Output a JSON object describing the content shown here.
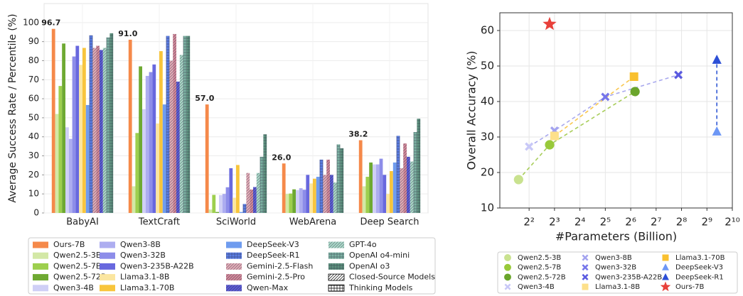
{
  "chart_data": [
    {
      "type": "bar",
      "ylabel": "Average Success Rate / Percentile (%)",
      "categories": [
        "BabyAI",
        "TextCraft",
        "SciWorld",
        "WebArena",
        "Deep Search"
      ],
      "ylim": [
        0,
        110
      ],
      "yticks": [
        0,
        10,
        20,
        30,
        40,
        50,
        60,
        70,
        80,
        90,
        100
      ],
      "grid": true,
      "series": [
        {
          "name": "Ours-7B",
          "color": "#f5894a",
          "values": [
            96.7,
            91.0,
            57.0,
            26.0,
            38.2
          ],
          "value_labels": [
            "96.7",
            "91.0",
            "57.0",
            "26.0",
            "38.2"
          ]
        },
        {
          "name": "Qwen2.5-3B",
          "color": "#d3e8a6",
          "values": [
            52,
            14,
            1.8,
            10,
            14
          ]
        },
        {
          "name": "Qwen2.5-7B",
          "color": "#9dcf4e",
          "values": [
            66.7,
            42,
            9.5,
            10.2,
            19
          ]
        },
        {
          "name": "Qwen2.5-72B",
          "color": "#6ea932",
          "values": [
            89,
            77,
            0.5,
            12.4,
            26.5
          ]
        },
        {
          "name": "Qwen3-4B",
          "color": "#cfcff6",
          "values": [
            45,
            54.5,
            9.4,
            12,
            25.5
          ]
        },
        {
          "name": "Qwen3-8B",
          "color": "#adadf0",
          "values": [
            38.9,
            72,
            10,
            13,
            25.5
          ]
        },
        {
          "name": "Qwen3-32B",
          "color": "#8d8de9",
          "values": [
            82.2,
            74,
            13.5,
            12.2,
            28.5
          ]
        },
        {
          "name": "Qwen3-235B-A22B",
          "color": "#6868de",
          "values": [
            87.8,
            78,
            23.5,
            20,
            20
          ]
        },
        {
          "name": "Llama3.1-8B",
          "color": "#fbe6a0",
          "values": [
            77.8,
            47,
            8,
            15.5,
            10
          ]
        },
        {
          "name": "Llama3.1-70B",
          "color": "#f8c53c",
          "values": [
            86.7,
            85,
            25.2,
            18,
            22
          ]
        },
        {
          "name": "DeepSeek-V3",
          "color": "#6f9cef",
          "values": [
            56.7,
            57,
            0.5,
            19,
            26.5
          ]
        },
        {
          "name": "DeepSeek-R1",
          "color": "#5c7fe6",
          "hatch": "+++",
          "values": [
            93.3,
            93,
            4.7,
            28,
            40.5
          ]
        },
        {
          "name": "Gemini-2.5-Flash",
          "color": "#e4adb8",
          "hatch": "///",
          "values": [
            86.7,
            80,
            21,
            20,
            23.5
          ]
        },
        {
          "name": "Gemini-2.5-Pro",
          "color": "#d48a9b",
          "hatch": "///",
          "values": [
            87.8,
            94,
            12.3,
            28,
            36.5
          ]
        },
        {
          "name": "Qwen-Max",
          "color": "#5b5bd6",
          "hatch": "///",
          "values": [
            85.6,
            69,
            13.6,
            20,
            29.5
          ]
        },
        {
          "name": "GPT-4o",
          "color": "#abd9c9",
          "hatch": "///",
          "values": [
            86.7,
            83,
            21,
            16,
            27
          ]
        },
        {
          "name": "OpenAI o4-mini",
          "color": "#7db3a3",
          "hatch": "+++",
          "values": [
            92.2,
            93,
            29.5,
            36,
            42.5
          ]
        },
        {
          "name": "OpenAI o3",
          "color": "#5e937f",
          "hatch": "+++",
          "values": [
            94.4,
            93,
            41.3,
            34,
            49.5
          ]
        }
      ],
      "legend_extra": [
        {
          "name": "Closed-Source Models",
          "hatch": "///"
        },
        {
          "name": "Thinking Models",
          "hatch": "+++"
        }
      ]
    },
    {
      "type": "scatter",
      "xlabel": "#Parameters (Billion)",
      "ylabel": "Overall Accuracy (%)",
      "log_base": 2,
      "xlim": [
        1.8,
        1024
      ],
      "xticks": [
        {
          "value": 4,
          "label": "2²"
        },
        {
          "value": 8,
          "label": "2³"
        },
        {
          "value": 16,
          "label": "2⁴"
        },
        {
          "value": 32,
          "label": "2⁵"
        },
        {
          "value": 64,
          "label": "2⁶"
        },
        {
          "value": 128,
          "label": "2⁷"
        },
        {
          "value": 256,
          "label": "2⁸"
        },
        {
          "value": 512,
          "label": "2⁹"
        },
        {
          "value": 1024,
          "label": "2¹⁰"
        }
      ],
      "ylim": [
        10,
        65
      ],
      "yticks": [
        10,
        20,
        30,
        40,
        50,
        60
      ],
      "grid": true,
      "series": [
        {
          "name": "Qwen2.5-3B",
          "color": "#c9e28f",
          "marker": "circle",
          "x": [
            3
          ],
          "values": [
            18
          ]
        },
        {
          "name": "Qwen2.5-7B",
          "color": "#98c93a",
          "marker": "circle",
          "x": [
            7
          ],
          "values": [
            27.8
          ]
        },
        {
          "name": "Qwen2.5-72B",
          "color": "#6aa52b",
          "marker": "circle",
          "x": [
            72
          ],
          "values": [
            42.8
          ]
        },
        {
          "name": "Qwen3-4B",
          "color": "#c8c8f7",
          "marker": "x",
          "x": [
            4
          ],
          "values": [
            27.3
          ]
        },
        {
          "name": "Qwen3-8B",
          "color": "#a3a3ef",
          "marker": "x",
          "x": [
            8
          ],
          "values": [
            31.8
          ]
        },
        {
          "name": "Qwen3-32B",
          "color": "#7676ea",
          "marker": "x",
          "x": [
            32
          ],
          "values": [
            41.3
          ]
        },
        {
          "name": "Qwen3-235B-A22B",
          "color": "#5a5ae0",
          "marker": "x",
          "x": [
            235
          ],
          "values": [
            47.5
          ]
        },
        {
          "name": "Llama3.1-8B",
          "color": "#fde08a",
          "marker": "square",
          "x": [
            8
          ],
          "values": [
            30.3
          ]
        },
        {
          "name": "Llama3.1-70B",
          "color": "#f9c02f",
          "marker": "square",
          "x": [
            70
          ],
          "values": [
            47
          ]
        },
        {
          "name": "DeepSeek-V3",
          "color": "#6d97f5",
          "marker": "triangle",
          "x": [
            671
          ],
          "values": [
            31.5
          ]
        },
        {
          "name": "DeepSeek-R1",
          "color": "#2c4fd6",
          "marker": "triangle",
          "x": [
            671
          ],
          "values": [
            51.7
          ]
        },
        {
          "name": "Ours-7B",
          "color": "#e8403a",
          "marker": "star",
          "x": [
            7
          ],
          "values": [
            61.8
          ]
        }
      ],
      "links": [
        {
          "color": "#a8cd5a",
          "names": [
            "Qwen2.5-3B",
            "Qwen2.5-7B",
            "Qwen2.5-72B"
          ]
        },
        {
          "color": "#a9a9ee",
          "names": [
            "Qwen3-4B",
            "Qwen3-8B",
            "Qwen3-32B",
            "Qwen3-235B-A22B"
          ]
        },
        {
          "color": "#f9c74f",
          "names": [
            "Llama3.1-8B",
            "Llama3.1-70B"
          ]
        },
        {
          "color": "#3057d5",
          "names": [
            "DeepSeek-V3",
            "DeepSeek-R1"
          ],
          "arrow": true
        }
      ]
    }
  ]
}
